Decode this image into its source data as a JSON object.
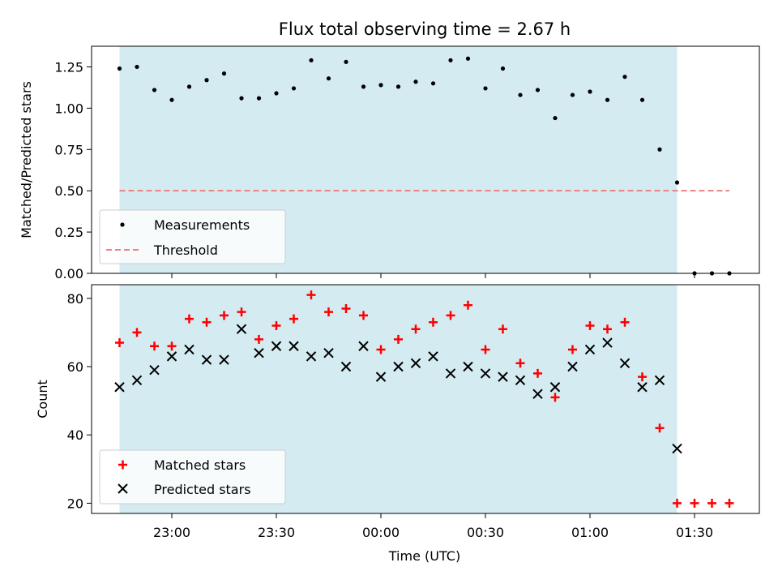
{
  "chart_data": [
    {
      "type": "scatter",
      "title": "Flux total observing time = 2.67 h",
      "ylabel": "Matched/Predicted stars",
      "xlabel": "",
      "ylim": [
        0,
        1.375
      ],
      "yticks": [
        "0.00",
        "0.25",
        "0.50",
        "0.75",
        "1.00",
        "1.25"
      ],
      "grid": false,
      "legend_placement": "lower-left",
      "observing_window": [
        "22:45",
        "01:25"
      ],
      "series": [
        {
          "name": "Measurements",
          "marker": "dot",
          "color": "#000000",
          "x": [
            "22:45",
            "22:50",
            "22:55",
            "23:00",
            "23:05",
            "23:10",
            "23:15",
            "23:20",
            "23:25",
            "23:30",
            "23:35",
            "23:40",
            "23:45",
            "23:50",
            "23:55",
            "00:00",
            "00:05",
            "00:10",
            "00:15",
            "00:20",
            "00:25",
            "00:30",
            "00:35",
            "00:40",
            "00:45",
            "00:50",
            "00:55",
            "01:00",
            "01:05",
            "01:10",
            "01:15",
            "01:20",
            "01:25",
            "01:30",
            "01:35",
            "01:40"
          ],
          "values": [
            1.24,
            1.25,
            1.11,
            1.05,
            1.13,
            1.17,
            1.21,
            1.06,
            1.06,
            1.09,
            1.12,
            1.29,
            1.18,
            1.28,
            1.13,
            1.14,
            1.13,
            1.16,
            1.15,
            1.29,
            1.3,
            1.12,
            1.24,
            1.08,
            1.11,
            0.94,
            1.08,
            1.1,
            1.05,
            1.19,
            1.05,
            0.75,
            0.55,
            0.0,
            0.0,
            0.0
          ]
        },
        {
          "name": "Threshold",
          "marker": "dashed-line",
          "color": "#f08080",
          "x": [
            "22:45",
            "01:40"
          ],
          "values": [
            0.5,
            0.5
          ]
        }
      ]
    },
    {
      "type": "scatter",
      "title": "",
      "ylabel": "Count",
      "xlabel": "Time (UTC)",
      "ylim": [
        17,
        84
      ],
      "yticks": [
        "20",
        "40",
        "60",
        "80"
      ],
      "xticks": [
        "23:00",
        "23:30",
        "00:00",
        "00:30",
        "01:00",
        "01:30"
      ],
      "grid": false,
      "legend_placement": "lower-left",
      "series": [
        {
          "name": "Matched stars",
          "marker": "plus",
          "color": "#ff0000",
          "x": [
            "22:45",
            "22:50",
            "22:55",
            "23:00",
            "23:05",
            "23:10",
            "23:15",
            "23:20",
            "23:25",
            "23:30",
            "23:35",
            "23:40",
            "23:45",
            "23:50",
            "23:55",
            "00:00",
            "00:05",
            "00:10",
            "00:15",
            "00:20",
            "00:25",
            "00:30",
            "00:35",
            "00:40",
            "00:45",
            "00:50",
            "00:55",
            "01:00",
            "01:05",
            "01:10",
            "01:15",
            "01:20",
            "01:25",
            "01:30",
            "01:35",
            "01:40"
          ],
          "values": [
            67,
            70,
            66,
            66,
            74,
            73,
            75,
            76,
            68,
            72,
            74,
            81,
            76,
            77,
            75,
            65,
            68,
            71,
            73,
            75,
            78,
            65,
            71,
            61,
            58,
            51,
            65,
            72,
            71,
            73,
            57,
            42,
            20,
            20,
            20,
            20
          ]
        },
        {
          "name": "Predicted stars",
          "marker": "x",
          "color": "#000000",
          "x": [
            "22:45",
            "22:50",
            "22:55",
            "23:00",
            "23:05",
            "23:10",
            "23:15",
            "23:20",
            "23:25",
            "23:30",
            "23:35",
            "23:40",
            "23:45",
            "23:50",
            "23:55",
            "00:00",
            "00:05",
            "00:10",
            "00:15",
            "00:20",
            "00:25",
            "00:30",
            "00:35",
            "00:40",
            "00:45",
            "00:50",
            "00:55",
            "01:00",
            "01:05",
            "01:10",
            "01:15",
            "01:20",
            "01:25"
          ],
          "values": [
            54,
            56,
            59,
            63,
            65,
            62,
            62,
            71,
            64,
            66,
            66,
            63,
            64,
            60,
            66,
            57,
            60,
            61,
            63,
            58,
            60,
            58,
            57,
            56,
            52,
            54,
            60,
            65,
            67,
            61,
            54,
            56,
            36
          ]
        }
      ]
    }
  ]
}
